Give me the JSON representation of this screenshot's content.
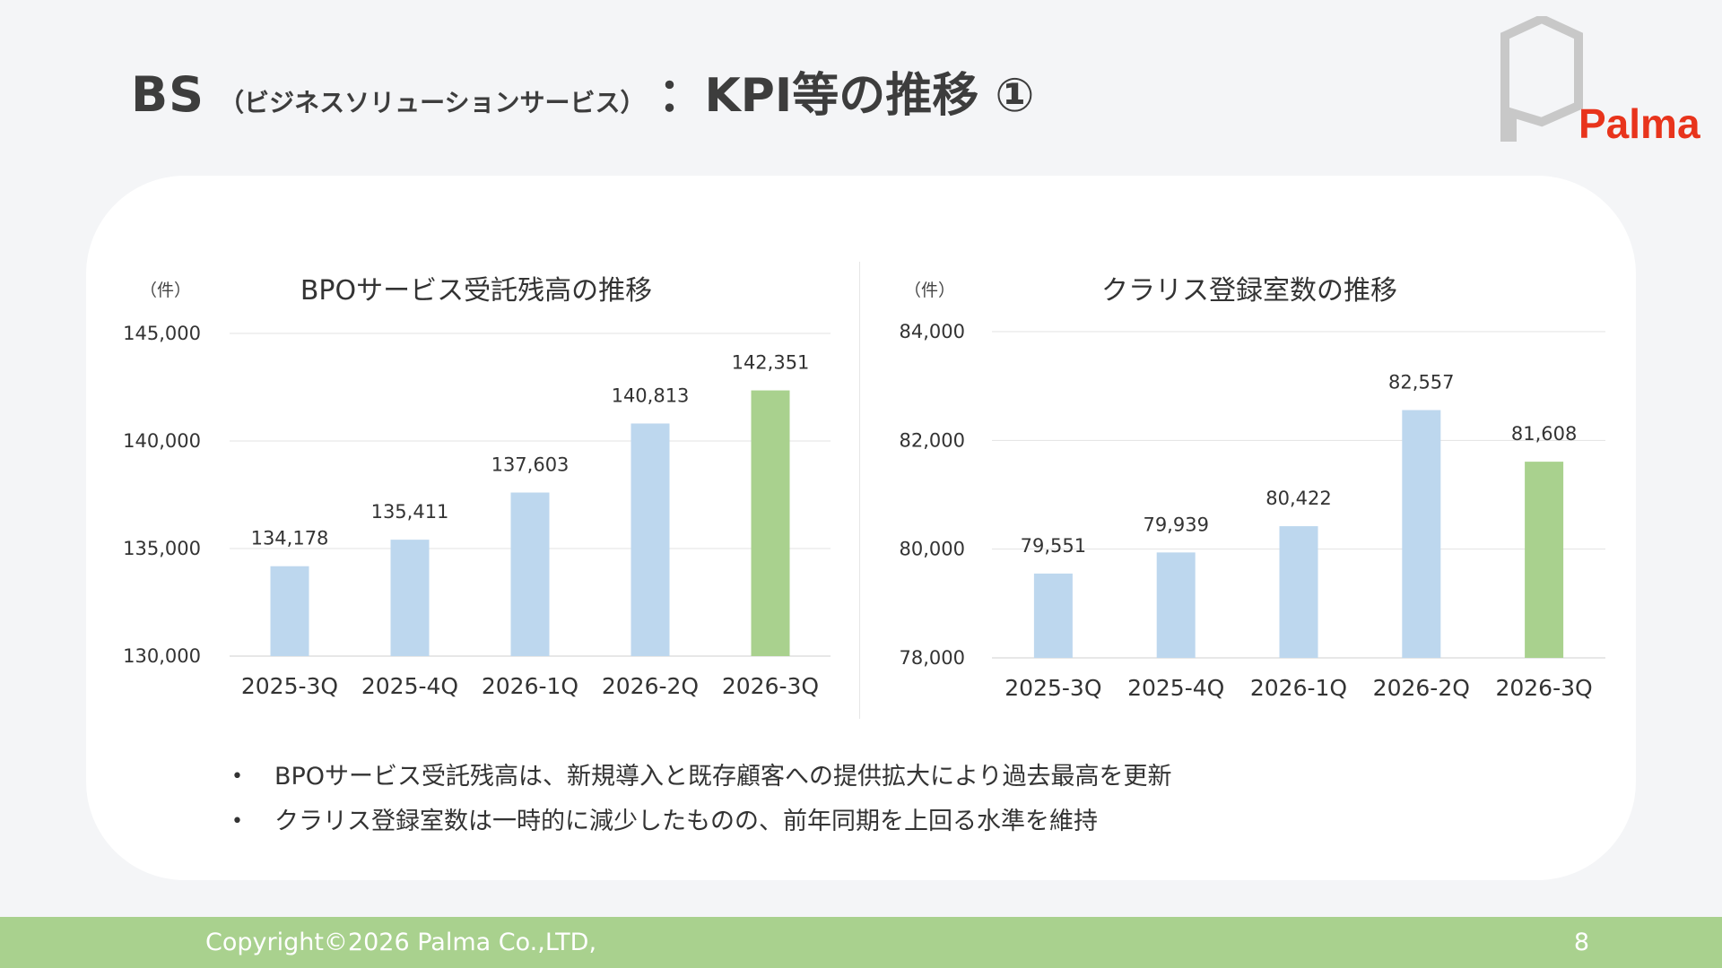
{
  "header": {
    "title_main": "BS",
    "title_sub": "（ビジネスソリューションサービス）",
    "title_kpi": "：KPI等の推移 ①"
  },
  "logo": {
    "text": "Palma",
    "text_color": "#e8341c",
    "mark_color": "#c8c8c8"
  },
  "colors": {
    "bar_default": "#bdd7ee",
    "bar_highlight": "#a9d18e",
    "footer_bg": "#a9d18e"
  },
  "charts": [
    {
      "title": "BPOサービス受託残高の推移",
      "unit": "（件）",
      "chart_data": {
        "type": "bar",
        "categories": [
          "2025-3Q",
          "2025-4Q",
          "2026-1Q",
          "2026-2Q",
          "2026-3Q"
        ],
        "values": [
          134178,
          135411,
          137603,
          140813,
          142351
        ],
        "value_labels": [
          "134,178",
          "135,411",
          "137,603",
          "140,813",
          "142,351"
        ],
        "ylim": [
          130000,
          145000
        ],
        "yticks": [
          130000,
          135000,
          140000,
          145000
        ],
        "ytick_labels": [
          "130,000",
          "135,000",
          "140,000",
          "145,000"
        ],
        "highlight_index": 4,
        "grid": true
      }
    },
    {
      "title": "クラリス登録室数の推移",
      "unit": "（件）",
      "chart_data": {
        "type": "bar",
        "categories": [
          "2025-3Q",
          "2025-4Q",
          "2026-1Q",
          "2026-2Q",
          "2026-3Q"
        ],
        "values": [
          79551,
          79939,
          80422,
          82557,
          81608
        ],
        "value_labels": [
          "79,551",
          "79,939",
          "80,422",
          "82,557",
          "81,608"
        ],
        "ylim": [
          78000,
          84000
        ],
        "yticks": [
          78000,
          80000,
          82000,
          84000
        ],
        "ytick_labels": [
          "78,000",
          "80,000",
          "82,000",
          "84,000"
        ],
        "highlight_index": 4,
        "grid": true
      }
    }
  ],
  "notes": {
    "bullet": "•",
    "items": [
      "BPOサービス受託残高は、新規導入と既存顧客への提供拡大により過去最高を更新",
      "クラリス登録室数は一時的に減少したものの、前年同期を上回る水準を維持"
    ]
  },
  "footer": {
    "copyright": "Copyright©2026 Palma Co.,LTD,",
    "page_number": "8"
  }
}
